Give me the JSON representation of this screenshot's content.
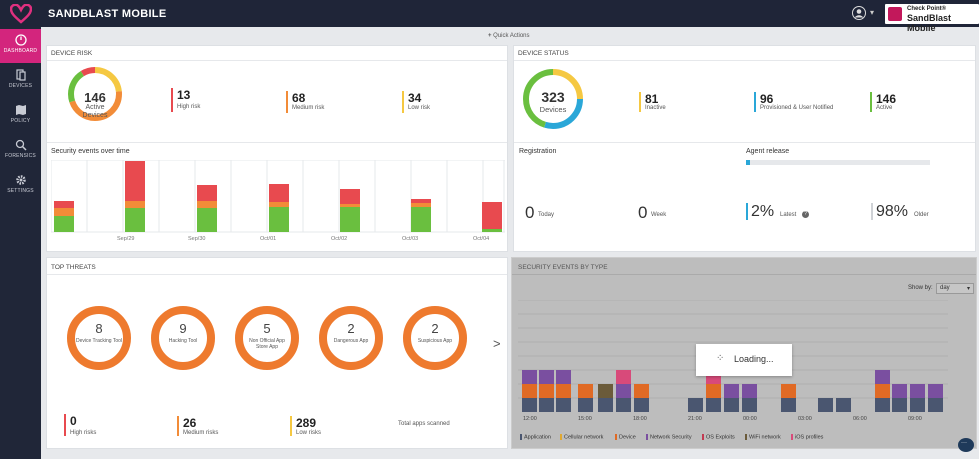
{
  "app": {
    "title": "SANDBLAST MOBILE",
    "brand_line1": "Check Point®",
    "brand_line2": "SandBlast Mobile"
  },
  "nav": [
    {
      "label": "DASHBOARD",
      "icon": "dashboard-icon"
    },
    {
      "label": "DEVICES",
      "icon": "devices-icon"
    },
    {
      "label": "POLICY",
      "icon": "policy-icon"
    },
    {
      "label": "FORENSICS",
      "icon": "forensics-icon"
    },
    {
      "label": "SETTINGS",
      "icon": "gear-icon"
    }
  ],
  "quick_actions": "Quick Actions",
  "device_risk": {
    "title": "DEVICE RISK",
    "total": "146",
    "total_l1": "Active",
    "total_l2": "Devices",
    "stats": [
      {
        "value": "13",
        "label": "High risk",
        "color": "#e84a4f"
      },
      {
        "value": "68",
        "label": "Medium risk",
        "color": "#f28c38"
      },
      {
        "value": "34",
        "label": "Low risk",
        "color": "#f5c842"
      }
    ],
    "events_title": "Security events over time",
    "dates": [
      "Sep/29",
      "Sep/30",
      "Oct/01",
      "Oct/02",
      "Oct/03",
      "Oct/04"
    ]
  },
  "device_status": {
    "title": "DEVICE STATUS",
    "total": "323",
    "total_l1": "Devices",
    "stats": [
      {
        "value": "81",
        "label": "Inactive",
        "color": "#f5c842"
      },
      {
        "value": "96",
        "label": "Provisioned & User Notified",
        "color": "#2aa7d8"
      },
      {
        "value": "146",
        "label": "Active",
        "color": "#6abf3f"
      }
    ],
    "registration": "Registration",
    "agent_release": "Agent release",
    "reg_today": "0",
    "reg_today_label": "Today",
    "reg_week": "0",
    "reg_week_label": "Week",
    "latest": "2%",
    "latest_label": "Latest",
    "older": "98%",
    "older_label": "Older"
  },
  "top_threats": {
    "title": "TOP THREATS",
    "rings": [
      {
        "value": "8",
        "label": "Device Tracking Tool"
      },
      {
        "value": "9",
        "label": "Hacking Tool"
      },
      {
        "value": "5",
        "label": "Non Official App Store App"
      },
      {
        "value": "2",
        "label": "Dangerous App"
      },
      {
        "value": "2",
        "label": "Suspicious App"
      }
    ],
    "next": ">",
    "stats": [
      {
        "value": "0",
        "label": "High risks",
        "color": "#e84a4f"
      },
      {
        "value": "26",
        "label": "Medium risks",
        "color": "#f28c38"
      },
      {
        "value": "289",
        "label": "Low risks",
        "color": "#f5c842"
      }
    ],
    "total_scanned": "Total apps scanned"
  },
  "security_events": {
    "title": "SECURITY EVENTS BY TYPE",
    "show_by_label": "Show by:",
    "show_by_value": "day",
    "loading": "Loading...",
    "times": [
      "12:00",
      "15:00",
      "18:00",
      "21:00",
      "00:00",
      "03:00",
      "06:00",
      "09:00"
    ],
    "legend": [
      {
        "label": "Application",
        "color": "#4a5670"
      },
      {
        "label": "Cellular network",
        "color": "#e0a830"
      },
      {
        "label": "Device",
        "color": "#e06a25"
      },
      {
        "label": "Network Security",
        "color": "#7a4fa0"
      },
      {
        "label": "OS Exploits",
        "color": "#c23a52"
      },
      {
        "label": "WiFi network",
        "color": "#6b5b3a"
      },
      {
        "label": "iOS profiles",
        "color": "#d84a7a"
      }
    ]
  }
}
